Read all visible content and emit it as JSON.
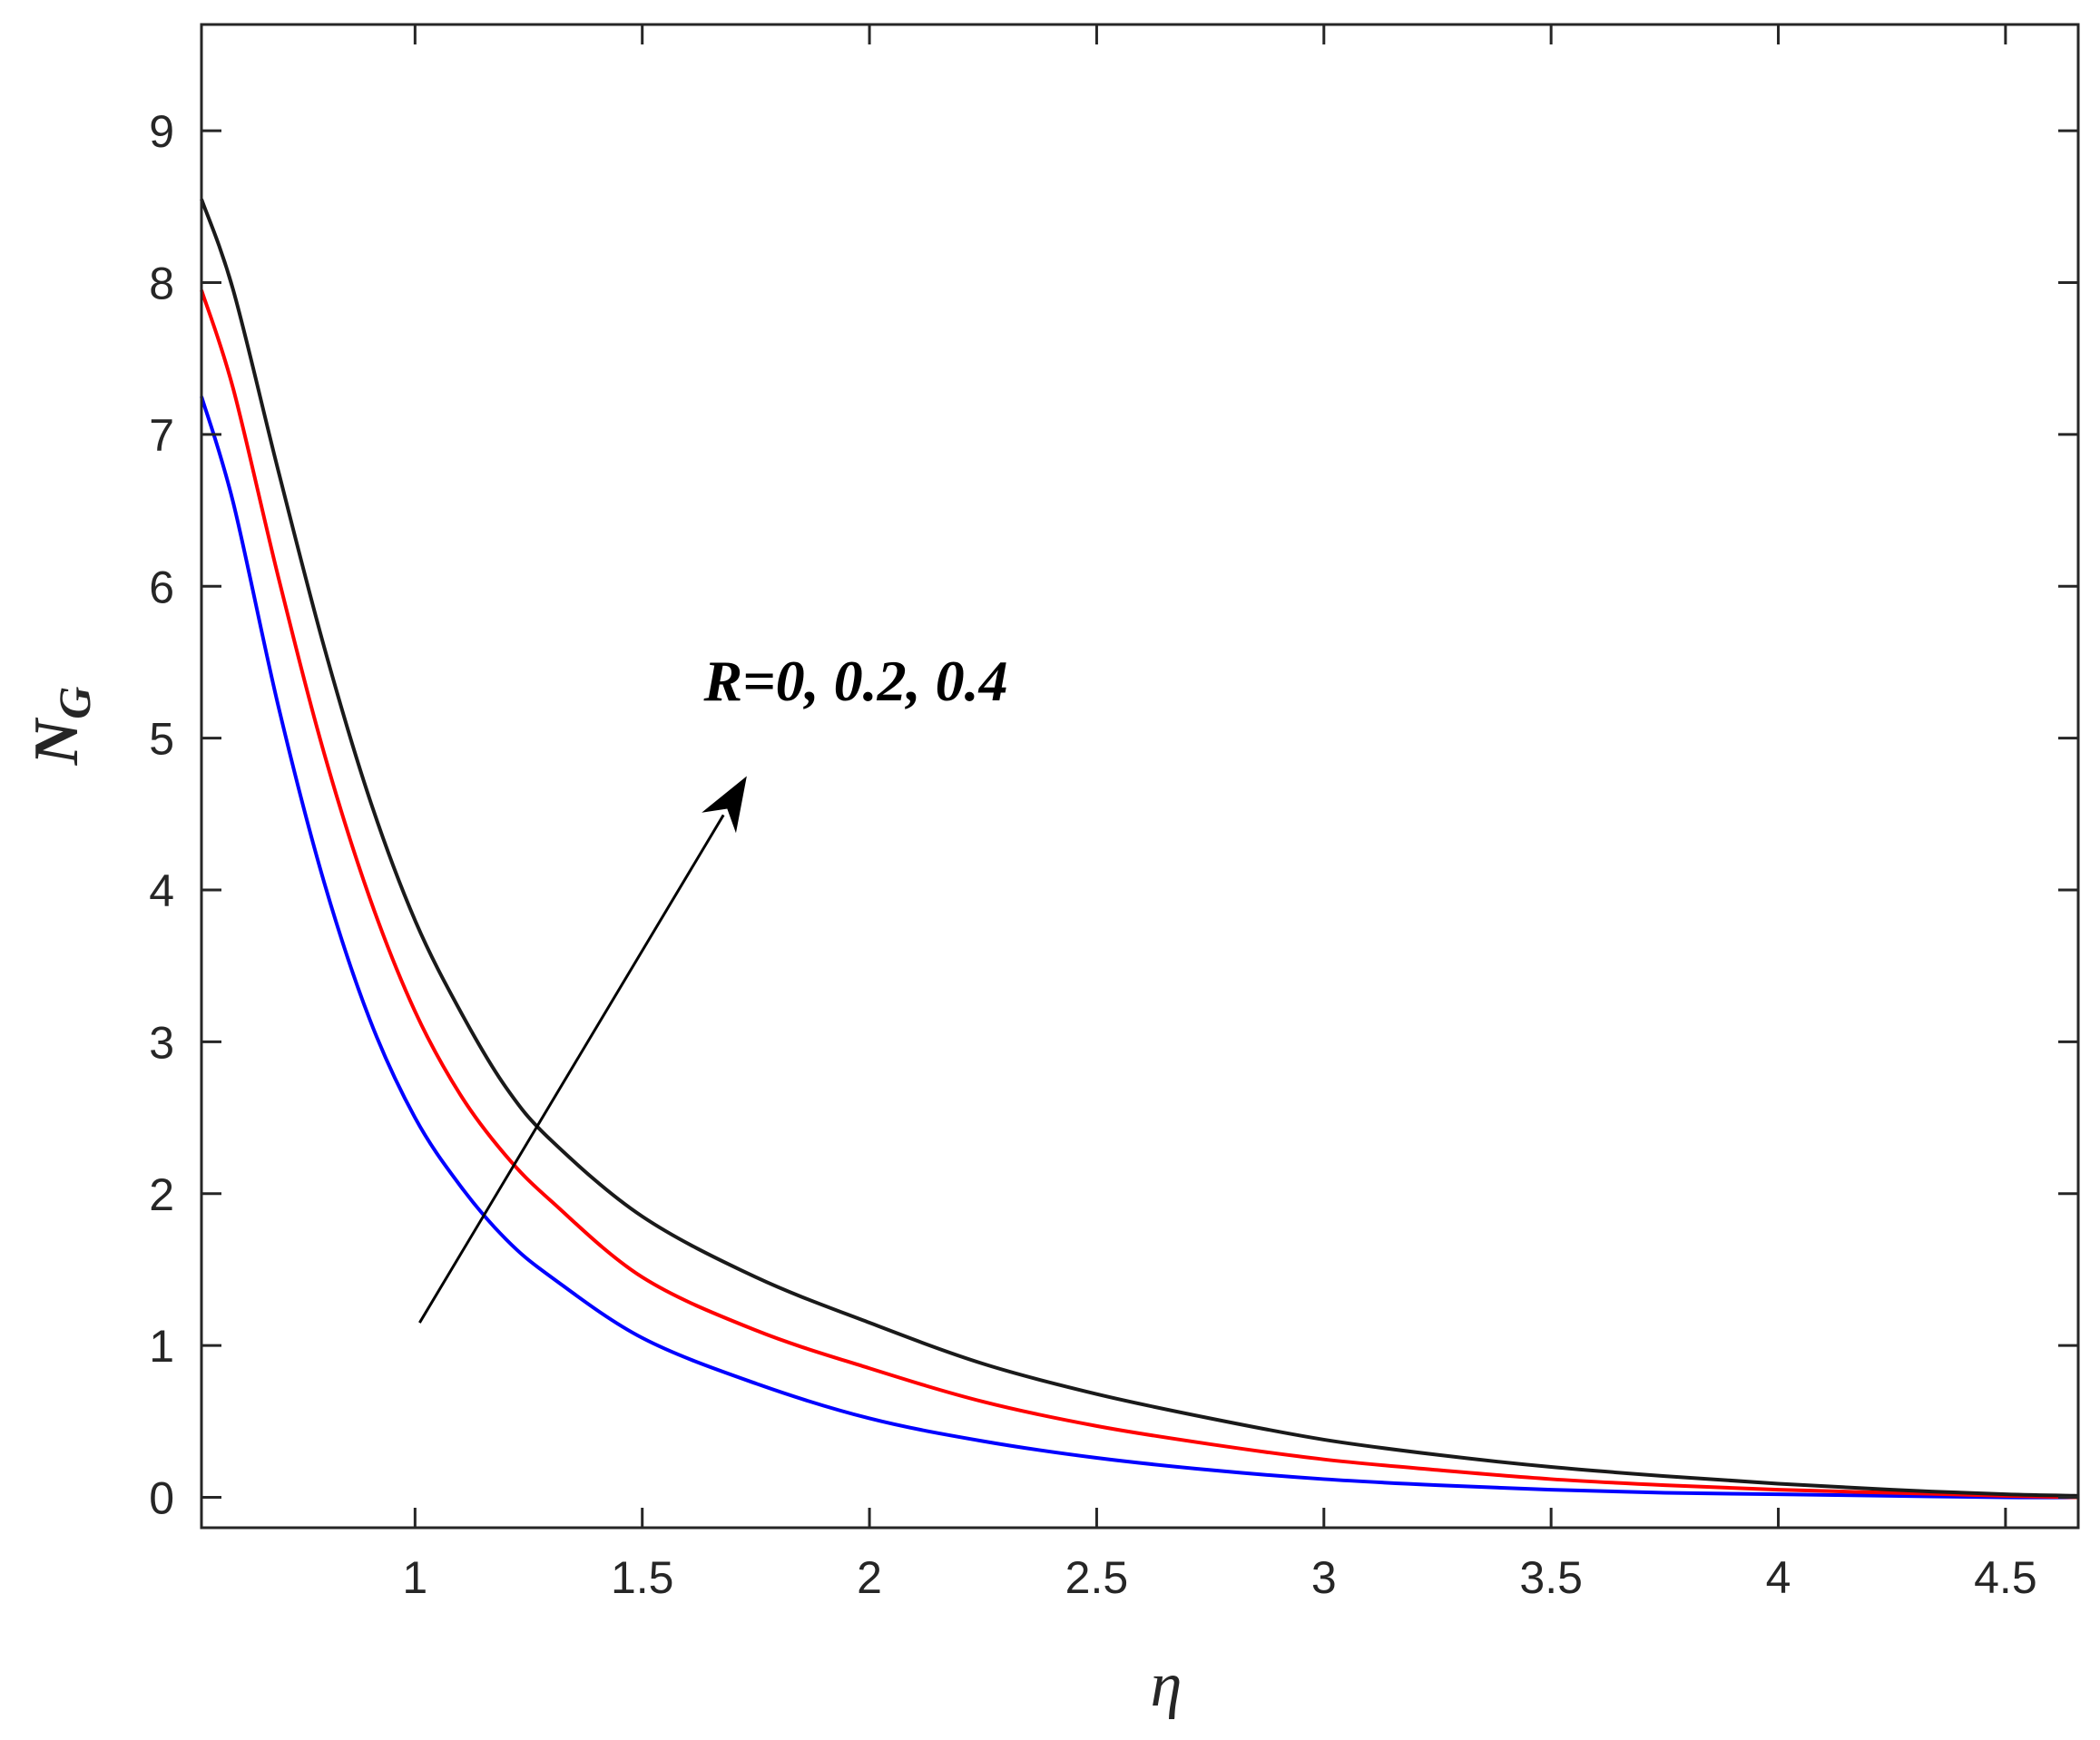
{
  "chart_data": {
    "type": "line",
    "title": "",
    "xlabel": "η",
    "ylabel_main": "N",
    "ylabel_sub": "G",
    "xlim": [
      0.53,
      4.66
    ],
    "ylim": [
      -0.2,
      9.7
    ],
    "xticks": [
      1,
      1.5,
      2,
      2.5,
      3,
      3.5,
      4,
      4.5
    ],
    "xtick_labels": [
      "1",
      "1.5",
      "2",
      "2.5",
      "3",
      "3.5",
      "4",
      "4.5"
    ],
    "yticks": [
      0,
      1,
      2,
      3,
      4,
      5,
      6,
      7,
      8,
      9
    ],
    "ytick_labels": [
      "0",
      "1",
      "2",
      "3",
      "4",
      "5",
      "6",
      "7",
      "8",
      "9"
    ],
    "grid": false,
    "x": [
      0.53,
      0.6,
      0.7,
      0.8,
      0.9,
      1.0,
      1.1,
      1.2,
      1.3,
      1.5,
      1.75,
      2.0,
      2.25,
      2.5,
      2.75,
      3.0,
      3.25,
      3.5,
      3.75,
      4.0,
      4.25,
      4.5,
      4.66
    ],
    "series": [
      {
        "color": "#0000ff",
        "values": [
          7.25,
          6.55,
          5.2,
          4.05,
          3.15,
          2.5,
          2.05,
          1.7,
          1.45,
          1.05,
          0.75,
          0.52,
          0.37,
          0.26,
          0.18,
          0.12,
          0.08,
          0.05,
          0.03,
          0.02,
          0.01,
          0.0,
          0.0
        ]
      },
      {
        "color": "#ff0000",
        "values": [
          7.95,
          7.3,
          6.05,
          4.9,
          3.95,
          3.2,
          2.65,
          2.25,
          1.95,
          1.45,
          1.1,
          0.85,
          0.63,
          0.47,
          0.35,
          0.25,
          0.18,
          0.12,
          0.08,
          0.05,
          0.03,
          0.01,
          0.0
        ]
      },
      {
        "color": "#1a1a1a",
        "values": [
          8.55,
          7.95,
          6.75,
          5.6,
          4.6,
          3.8,
          3.2,
          2.7,
          2.35,
          1.85,
          1.45,
          1.15,
          0.88,
          0.68,
          0.52,
          0.38,
          0.28,
          0.2,
          0.14,
          0.09,
          0.05,
          0.02,
          0.01
        ]
      }
    ],
    "annotations": [
      {
        "text": "R=0, 0.2, 0.4",
        "x": 1.97,
        "y": 5.25
      }
    ],
    "arrow": {
      "from": [
        1.01,
        1.15
      ],
      "to": [
        1.73,
        4.75
      ]
    }
  }
}
